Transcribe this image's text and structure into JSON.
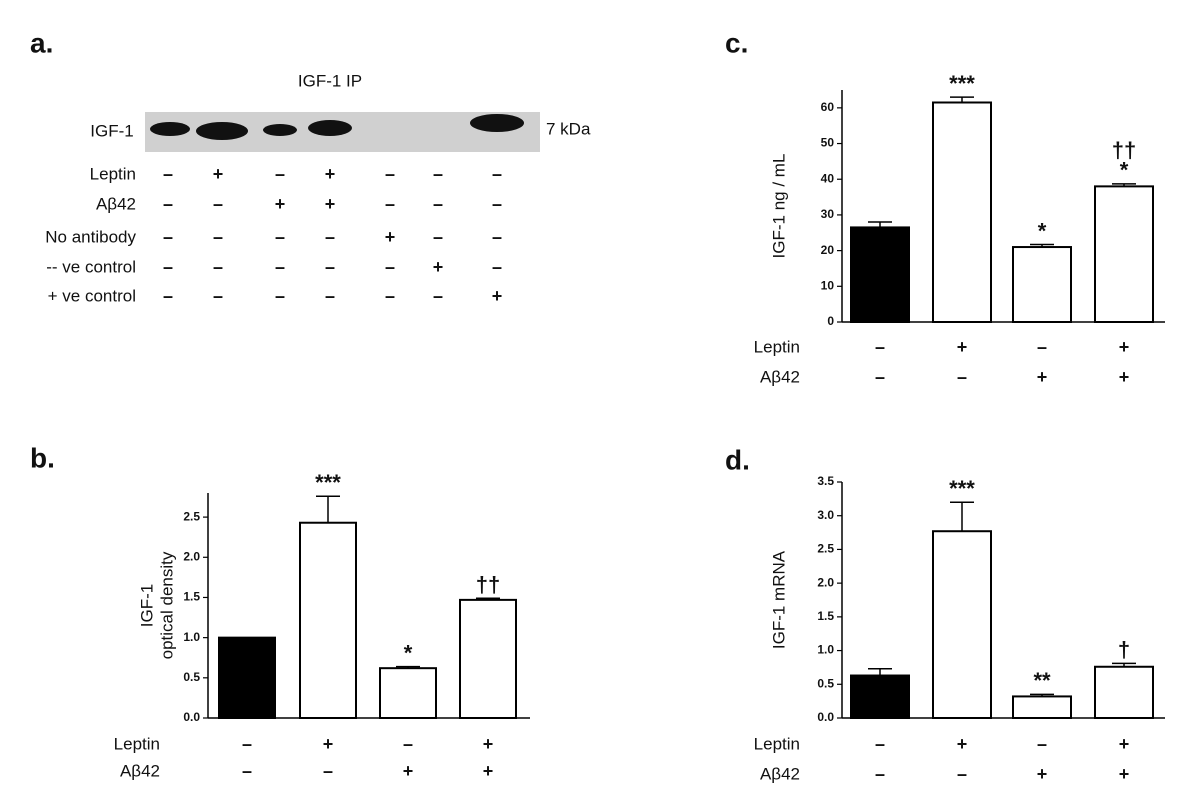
{
  "blot": {
    "panel_label": "a.",
    "title": "IGF-1  IP",
    "band_label": "IGF-1",
    "size_label": "7 kDa",
    "rows": [
      {
        "label": "Leptin",
        "signs": [
          "–",
          "+",
          "–",
          "+",
          "–",
          "–",
          "–"
        ]
      },
      {
        "label": "Aβ42",
        "signs": [
          "–",
          "–",
          "+",
          "+",
          "–",
          "–",
          "–"
        ]
      },
      {
        "label": "No antibody",
        "signs": [
          "–",
          "–",
          "–",
          "–",
          "+",
          "–",
          "–"
        ]
      },
      {
        "label": "-- ve control",
        "signs": [
          "–",
          "–",
          "–",
          "–",
          "–",
          "+",
          "–"
        ]
      },
      {
        "label": "+ ve control",
        "signs": [
          "–",
          "–",
          "–",
          "–",
          "–",
          "–",
          "+"
        ]
      }
    ]
  },
  "chart_data": [
    {
      "type": "bar",
      "panel_label": "b.",
      "ylabel": [
        "IGF-1",
        "optical density"
      ],
      "values": [
        1.0,
        2.43,
        0.62,
        1.47
      ],
      "errors": [
        0,
        0.33,
        0.02,
        0.02
      ],
      "colors": [
        "#000000",
        "#ffffff",
        "#ffffff",
        "#ffffff"
      ],
      "annotations": [
        null,
        [
          "***"
        ],
        [
          "*"
        ],
        [
          "††"
        ]
      ],
      "ylim": [
        0,
        2.8
      ],
      "yticks": [
        {
          "value": 0,
          "label": "0.0"
        },
        {
          "value": 0.5,
          "label": "0.5"
        },
        {
          "value": 1,
          "label": "1.0"
        },
        {
          "value": 1.5,
          "label": "1.5"
        },
        {
          "value": 2,
          "label": "2.0"
        },
        {
          "value": 2.5,
          "label": "2.5"
        }
      ],
      "conditions": [
        {
          "label": "Leptin",
          "signs": [
            "–",
            "+",
            "–",
            "+"
          ]
        },
        {
          "label": "Aβ42",
          "signs": [
            "–",
            "–",
            "+",
            "+"
          ]
        }
      ]
    },
    {
      "type": "bar",
      "panel_label": "c.",
      "ylabel": [
        "IGF-1  ng / mL"
      ],
      "values": [
        26.5,
        61.5,
        21,
        38
      ],
      "errors": [
        1.5,
        1.5,
        0.7,
        0.7
      ],
      "colors": [
        "#000000",
        "#ffffff",
        "#ffffff",
        "#ffffff"
      ],
      "annotations": [
        null,
        [
          "***"
        ],
        [
          "*"
        ],
        [
          "††",
          "*"
        ]
      ],
      "ylim": [
        0,
        65
      ],
      "yticks": [
        0,
        10,
        20,
        30,
        40,
        50,
        60
      ],
      "conditions": [
        {
          "label": "Leptin",
          "signs": [
            "–",
            "+",
            "–",
            "+"
          ]
        },
        {
          "label": "Aβ42",
          "signs": [
            "–",
            "–",
            "+",
            "+"
          ]
        }
      ]
    },
    {
      "type": "bar",
      "panel_label": "d.",
      "ylabel": [
        "IGF-1  mRNA"
      ],
      "values": [
        0.63,
        2.77,
        0.32,
        0.76
      ],
      "errors": [
        0.1,
        0.43,
        0.03,
        0.05
      ],
      "colors": [
        "#000000",
        "#ffffff",
        "#ffffff",
        "#ffffff"
      ],
      "annotations": [
        null,
        [
          "***"
        ],
        [
          "**"
        ],
        [
          "†"
        ]
      ],
      "ylim": [
        0,
        3.5
      ],
      "yticks": [
        {
          "value": 0,
          "label": "0.0"
        },
        {
          "value": 0.5,
          "label": "0.5"
        },
        {
          "value": 1,
          "label": "1.0"
        },
        {
          "value": 1.5,
          "label": "1.5"
        },
        {
          "value": 2,
          "label": "2.0"
        },
        {
          "value": 2.5,
          "label": "2.5"
        },
        {
          "value": 3,
          "label": "3.0"
        },
        {
          "value": 3.5,
          "label": "3.5"
        }
      ],
      "conditions": [
        {
          "label": "Leptin",
          "signs": [
            "–",
            "+",
            "–",
            "+"
          ]
        },
        {
          "label": "Aβ42",
          "signs": [
            "–",
            "–",
            "+",
            "+"
          ]
        }
      ]
    }
  ]
}
